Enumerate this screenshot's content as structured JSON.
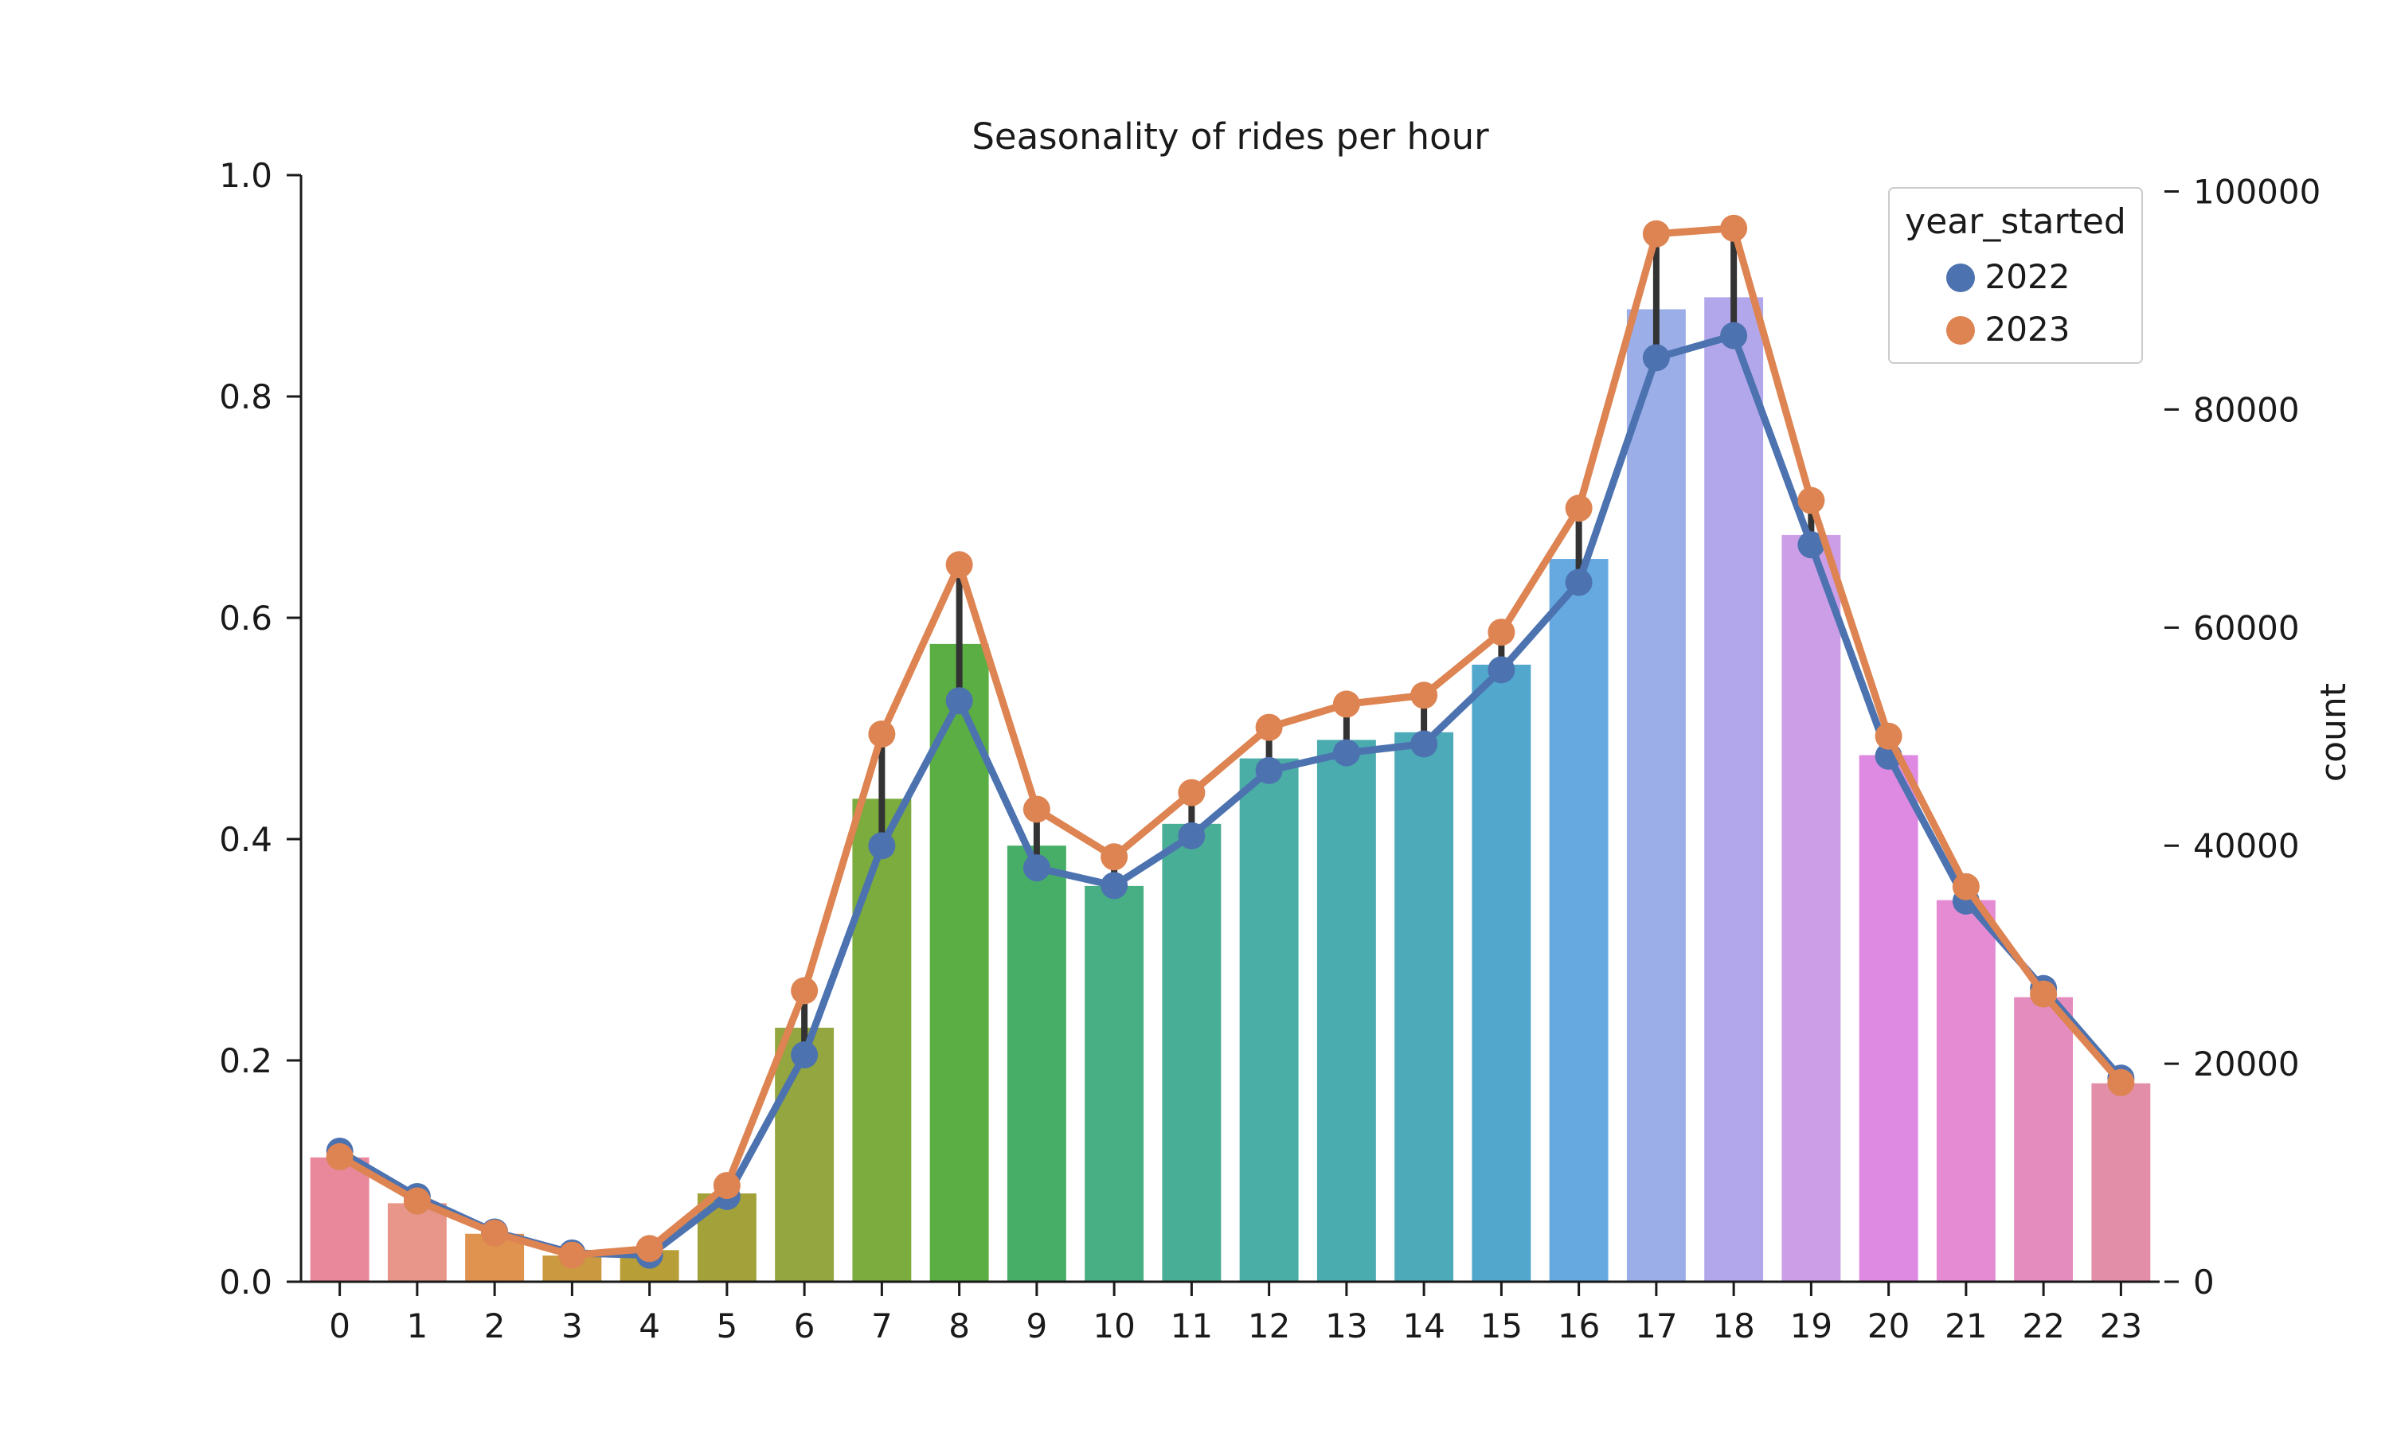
{
  "chart_data": {
    "type": "bar",
    "title": "Seasonality of rides per hour",
    "xlabel": "",
    "ylabel": "",
    "y2label": "count",
    "categories": [
      "0",
      "1",
      "2",
      "3",
      "4",
      "5",
      "6",
      "7",
      "8",
      "9",
      "10",
      "11",
      "12",
      "13",
      "14",
      "15",
      "16",
      "17",
      "18",
      "19",
      "20",
      "21",
      "22",
      "23"
    ],
    "ylim": [
      0,
      1.0
    ],
    "yticks": [
      "0.0",
      "0.2",
      "0.4",
      "0.6",
      "0.8",
      "1.0"
    ],
    "y2lim": [
      0,
      101500
    ],
    "y2ticks": [
      "0",
      "20000",
      "40000",
      "60000",
      "80000",
      "100000"
    ],
    "bar_axis": "right",
    "bar_colors": [
      "#e8889a",
      "#e8958a",
      "#e0924f",
      "#cb993f",
      "#b89e36",
      "#a3a23a",
      "#93a63f",
      "#7cab3e",
      "#5bae43",
      "#47ae68",
      "#48af84",
      "#49ae96",
      "#4aada6",
      "#4bacb0",
      "#4daab9",
      "#51a8cc",
      "#66a9e0",
      "#9baee8",
      "#b3a7eb",
      "#cb9ee7",
      "#df8ae2",
      "#e48bd4",
      "#e48cbe",
      "#e28ea8"
    ],
    "bar_values": [
      11400,
      7200,
      4400,
      2400,
      2900,
      8100,
      23300,
      44300,
      58500,
      40000,
      36300,
      42000,
      48000,
      49700,
      50400,
      56600,
      66300,
      89200,
      90300,
      68500,
      48300,
      35000,
      26100,
      18200
    ],
    "series": [
      {
        "name": "2022",
        "color": "#4c72b0",
        "values": [
          0.118,
          0.077,
          0.045,
          0.026,
          0.024,
          0.077,
          0.205,
          0.394,
          0.525,
          0.374,
          0.358,
          0.403,
          0.462,
          0.478,
          0.486,
          0.553,
          0.632,
          0.835,
          0.855,
          0.666,
          0.475,
          0.344,
          0.265,
          0.184
        ]
      },
      {
        "name": "2023",
        "color": "#dd8452",
        "values": [
          0.113,
          0.073,
          0.044,
          0.024,
          0.03,
          0.087,
          0.263,
          0.495,
          0.648,
          0.427,
          0.384,
          0.442,
          0.501,
          0.522,
          0.53,
          0.587,
          0.699,
          0.947,
          0.952,
          0.706,
          0.493,
          0.357,
          0.26,
          0.18
        ]
      }
    ],
    "legend": {
      "title": "year_started",
      "position": "top-right",
      "entries": [
        "2022",
        "2023"
      ]
    },
    "grid": false
  }
}
